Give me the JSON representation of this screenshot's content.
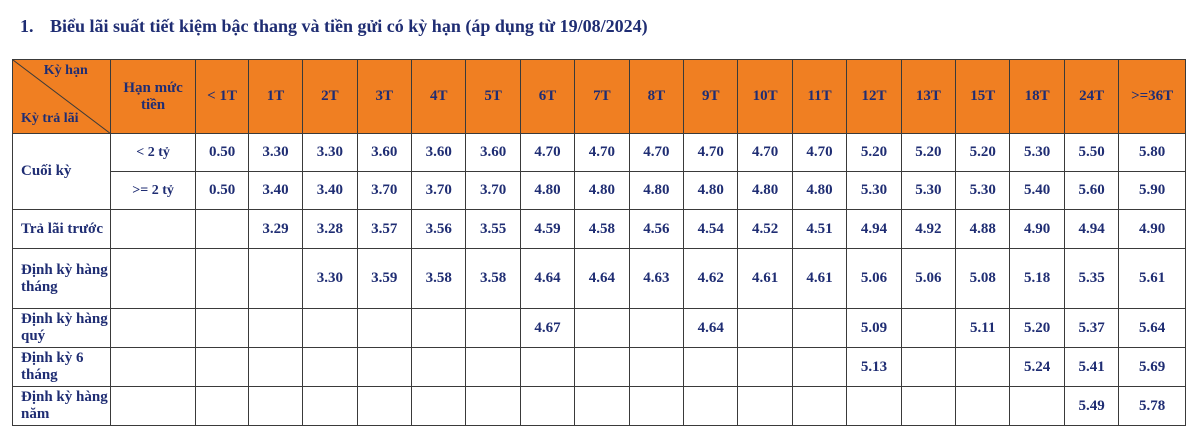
{
  "heading": {
    "number": "1.",
    "title": "Biểu lãi suất tiết kiệm bậc thang và tiền gửi có kỳ hạn (áp dụng từ 19/08/2024)"
  },
  "colors": {
    "header_bg": "#f07f22",
    "text": "#1f2d73",
    "border": "#3a3a3a"
  },
  "table": {
    "corner_top": "Kỳ hạn",
    "corner_bottom": "Kỳ trả lãi",
    "limit_header": "Hạn mức tiền",
    "terms": [
      "< 1T",
      "1T",
      "2T",
      "3T",
      "4T",
      "5T",
      "6T",
      "7T",
      "8T",
      "9T",
      "10T",
      "11T",
      "12T",
      "13T",
      "15T",
      "18T",
      "24T",
      ">=36T"
    ],
    "cuoi_ky": {
      "label": "Cuối kỳ",
      "sub": [
        {
          "limit": "< 2 tỷ",
          "values": [
            "0.50",
            "3.30",
            "3.30",
            "3.60",
            "3.60",
            "3.60",
            "4.70",
            "4.70",
            "4.70",
            "4.70",
            "4.70",
            "4.70",
            "5.20",
            "5.20",
            "5.20",
            "5.30",
            "5.50",
            "5.80"
          ]
        },
        {
          "limit": ">= 2 tỷ",
          "values": [
            "0.50",
            "3.40",
            "3.40",
            "3.70",
            "3.70",
            "3.70",
            "4.80",
            "4.80",
            "4.80",
            "4.80",
            "4.80",
            "4.80",
            "5.30",
            "5.30",
            "5.30",
            "5.40",
            "5.60",
            "5.90"
          ]
        }
      ]
    },
    "rows": [
      {
        "label": "Trả lãi trước",
        "values": [
          "",
          "3.29",
          "3.28",
          "3.57",
          "3.56",
          "3.55",
          "4.59",
          "4.58",
          "4.56",
          "4.54",
          "4.52",
          "4.51",
          "4.94",
          "4.92",
          "4.88",
          "4.90",
          "4.94",
          "4.90"
        ]
      },
      {
        "label": "Định kỳ hàng tháng",
        "values": [
          "",
          "",
          "3.30",
          "3.59",
          "3.58",
          "3.58",
          "4.64",
          "4.64",
          "4.63",
          "4.62",
          "4.61",
          "4.61",
          "5.06",
          "5.06",
          "5.08",
          "5.18",
          "5.35",
          "5.61"
        ]
      },
      {
        "label": "Định kỳ hàng quý",
        "values": [
          "",
          "",
          "",
          "",
          "",
          "",
          "4.67",
          "",
          "",
          "4.64",
          "",
          "",
          "5.09",
          "",
          "5.11",
          "5.20",
          "5.37",
          "5.64"
        ]
      },
      {
        "label": "Định kỳ 6 tháng",
        "values": [
          "",
          "",
          "",
          "",
          "",
          "",
          "",
          "",
          "",
          "",
          "",
          "",
          "5.13",
          "",
          "",
          "5.24",
          "5.41",
          "5.69"
        ]
      },
      {
        "label": "Định kỳ hàng năm",
        "values": [
          "",
          "",
          "",
          "",
          "",
          "",
          "",
          "",
          "",
          "",
          "",
          "",
          "",
          "",
          "",
          "",
          "5.49",
          "5.78"
        ]
      }
    ]
  }
}
